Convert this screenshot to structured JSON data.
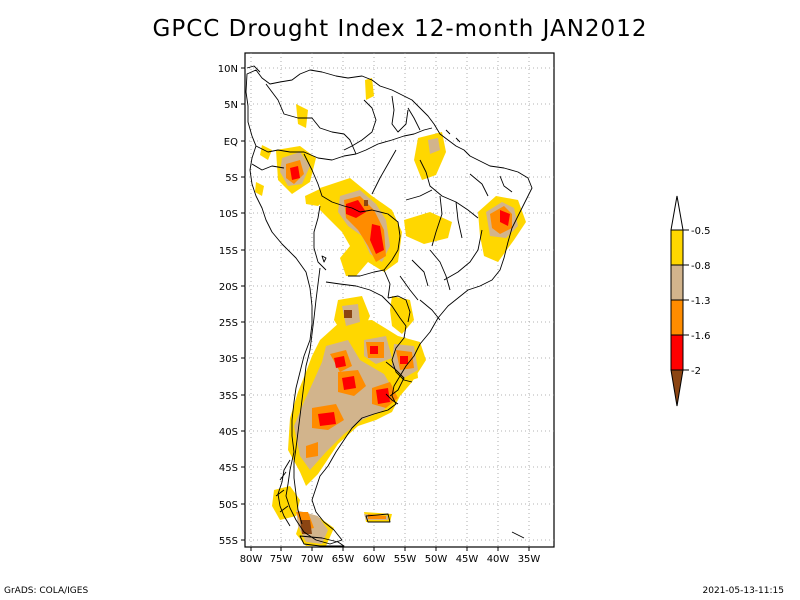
{
  "title": "GPCC Drought Index 12-month JAN2012",
  "map": {
    "region": "South America",
    "lat_labels": [
      "10N",
      "5N",
      "EQ",
      "5S",
      "10S",
      "15S",
      "20S",
      "25S",
      "30S",
      "35S",
      "40S",
      "45S",
      "50S",
      "55S"
    ],
    "lon_labels": [
      "80W",
      "75W",
      "70W",
      "65W",
      "60W",
      "55W",
      "50W",
      "45W",
      "40W",
      "35W"
    ]
  },
  "legend": {
    "labels": [
      "-0.5",
      "-0.8",
      "-1.3",
      "-1.6",
      "-2"
    ],
    "colors": {
      "moderate": "#ffd700",
      "severe": "#d2b48c",
      "very_severe": "#ff8c00",
      "extreme": "#ff0000",
      "exceptional": "#8b4513"
    }
  },
  "footer": {
    "left": "GrADS: COLA/IGES",
    "right": "2021-05-13-11:15"
  }
}
